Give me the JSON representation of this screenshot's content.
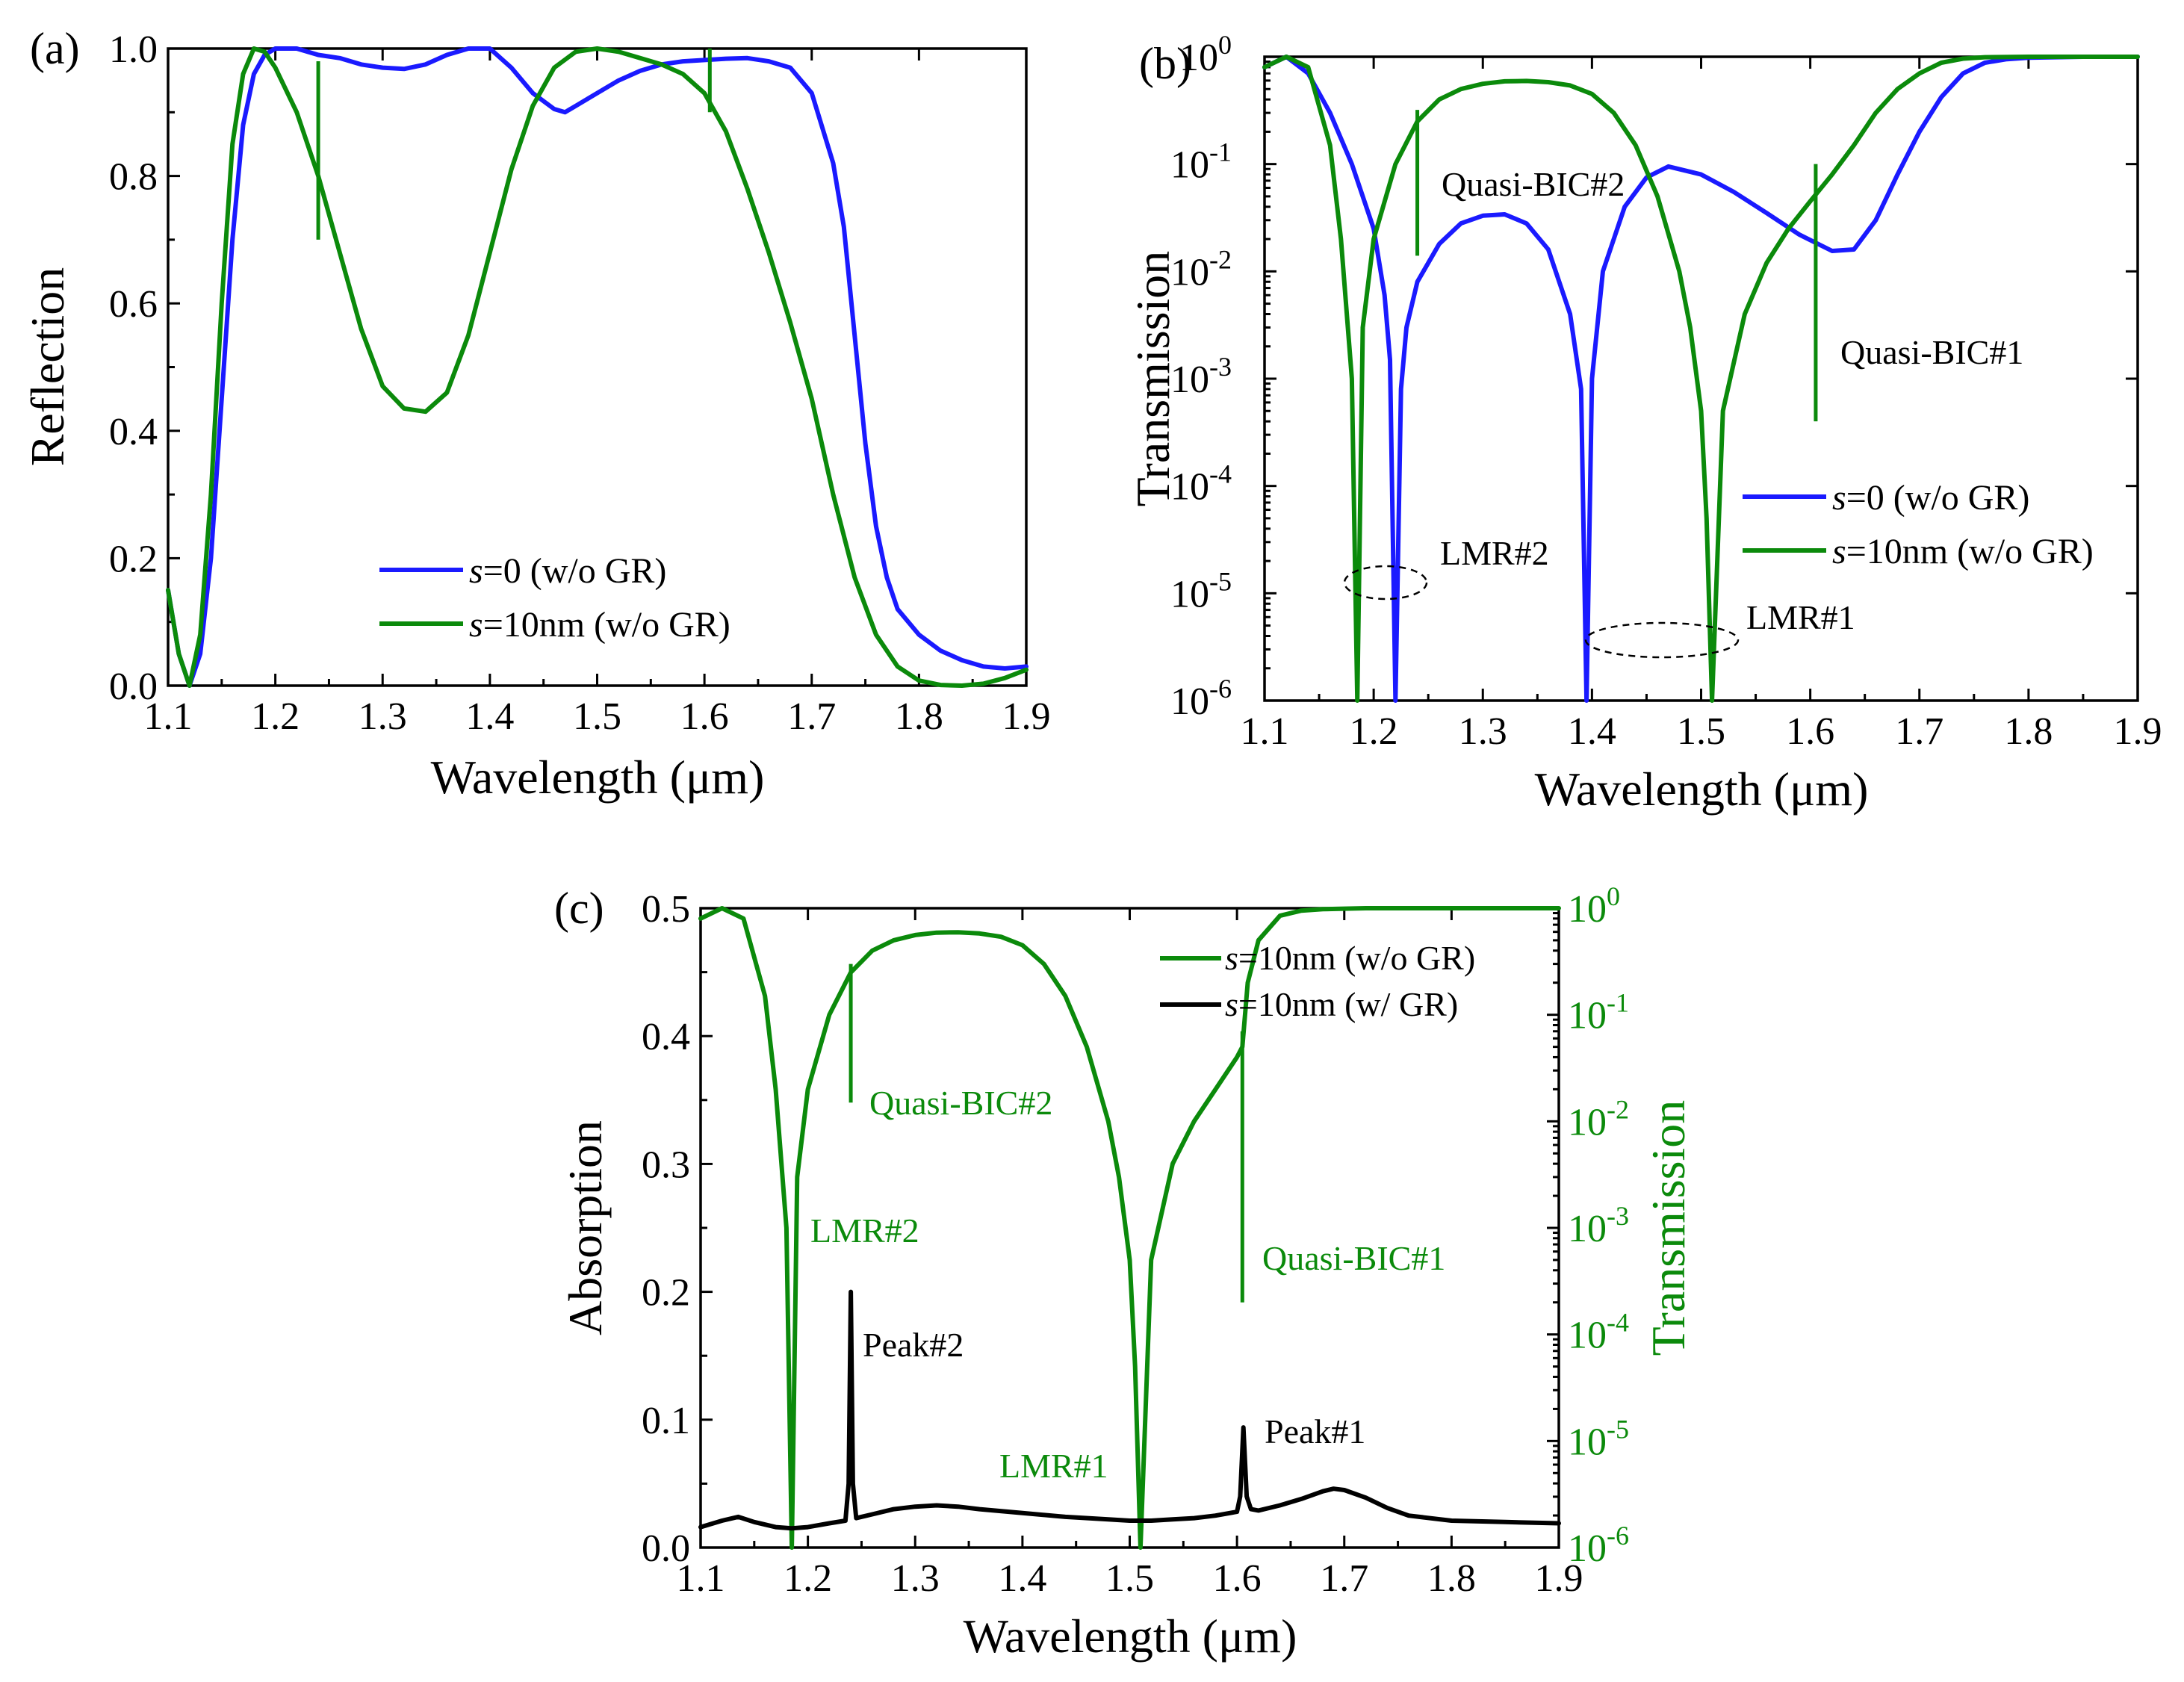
{
  "colors": {
    "blue": "#1a1aff",
    "green": "#0b8a0b",
    "black": "#000000"
  },
  "panels": {
    "a": {
      "label": "(a)",
      "xlabel": "Wavelength (μm)",
      "ylabel": "Reflection",
      "xticks": [
        "1.1",
        "1.2",
        "1.3",
        "1.4",
        "1.5",
        "1.6",
        "1.7",
        "1.8",
        "1.9"
      ],
      "yticks": [
        "0.0",
        "0.2",
        "0.4",
        "0.6",
        "0.8",
        "1.0"
      ],
      "legend": [
        {
          "s": "s",
          "rest": "=0 (w/o GR)"
        },
        {
          "s": "s",
          "rest": "=10nm (w/o GR)"
        }
      ]
    },
    "b": {
      "label": "(b)",
      "xlabel": "Wavelength (μm)",
      "ylabel": "Transmission",
      "xticks": [
        "1.1",
        "1.2",
        "1.3",
        "1.4",
        "1.5",
        "1.6",
        "1.7",
        "1.8",
        "1.9"
      ],
      "yticks": [
        {
          "base": "10",
          "exp": "0"
        },
        {
          "base": "10",
          "exp": "-1"
        },
        {
          "base": "10",
          "exp": "-2"
        },
        {
          "base": "10",
          "exp": "-3"
        },
        {
          "base": "10",
          "exp": "-4"
        },
        {
          "base": "10",
          "exp": "-5"
        },
        {
          "base": "10",
          "exp": "-6"
        }
      ],
      "legend": [
        {
          "s": "s",
          "rest": "=0 (w/o GR)"
        },
        {
          "s": "s",
          "rest": "=10nm (w/o GR)"
        }
      ],
      "annotations": {
        "qbic2": "Quasi-BIC#2",
        "qbic1": "Quasi-BIC#1",
        "lmr2": "LMR#2",
        "lmr1": "LMR#1"
      }
    },
    "c": {
      "label": "(c)",
      "xlabel": "Wavelength (μm)",
      "ylabel": "Absorption",
      "y2label": "Transmission",
      "xticks": [
        "1.1",
        "1.2",
        "1.3",
        "1.4",
        "1.5",
        "1.6",
        "1.7",
        "1.8",
        "1.9"
      ],
      "yticks": [
        "0.0",
        "0.1",
        "0.2",
        "0.3",
        "0.4",
        "0.5"
      ],
      "y2ticks": [
        {
          "base": "10",
          "exp": "0"
        },
        {
          "base": "10",
          "exp": "-1"
        },
        {
          "base": "10",
          "exp": "-2"
        },
        {
          "base": "10",
          "exp": "-3"
        },
        {
          "base": "10",
          "exp": "-4"
        },
        {
          "base": "10",
          "exp": "-5"
        },
        {
          "base": "10",
          "exp": "-6"
        }
      ],
      "legend": [
        {
          "s": "s",
          "rest": "=10nm (w/o GR)"
        },
        {
          "s": "s",
          "rest": "=10nm (w/ GR)"
        }
      ],
      "annotations": {
        "qbic2": "Quasi-BIC#2",
        "qbic1": "Quasi-BIC#1",
        "lmr2": "LMR#2",
        "lmr1": "LMR#1",
        "peak2": "Peak#2",
        "peak1": "Peak#1"
      }
    }
  },
  "chart_data": [
    {
      "type": "line",
      "panel": "a",
      "title": "",
      "xlabel": "Wavelength (μm)",
      "ylabel": "Reflection",
      "xlim": [
        1.1,
        1.9
      ],
      "ylim": [
        0.0,
        1.0
      ],
      "series": [
        {
          "name": "s=0 (w/o GR)",
          "color": "blue",
          "x": [
            1.1,
            1.11,
            1.12,
            1.13,
            1.14,
            1.15,
            1.16,
            1.17,
            1.18,
            1.19,
            1.2,
            1.22,
            1.24,
            1.26,
            1.28,
            1.3,
            1.32,
            1.34,
            1.36,
            1.38,
            1.4,
            1.42,
            1.44,
            1.46,
            1.47,
            1.48,
            1.5,
            1.52,
            1.54,
            1.56,
            1.58,
            1.6,
            1.62,
            1.64,
            1.66,
            1.68,
            1.7,
            1.72,
            1.73,
            1.74,
            1.75,
            1.76,
            1.77,
            1.78,
            1.8,
            1.82,
            1.84,
            1.86,
            1.88,
            1.9
          ],
          "y": [
            0.15,
            0.05,
            0.0,
            0.05,
            0.2,
            0.45,
            0.7,
            0.88,
            0.96,
            0.99,
            1.0,
            1.0,
            0.99,
            0.985,
            0.975,
            0.97,
            0.968,
            0.975,
            0.99,
            1.0,
            1.0,
            0.97,
            0.93,
            0.905,
            0.9,
            0.91,
            0.93,
            0.95,
            0.965,
            0.975,
            0.98,
            0.982,
            0.984,
            0.985,
            0.98,
            0.97,
            0.93,
            0.82,
            0.72,
            0.55,
            0.38,
            0.25,
            0.17,
            0.12,
            0.08,
            0.055,
            0.04,
            0.03,
            0.027,
            0.03
          ]
        },
        {
          "name": "s=10nm (w/o GR)",
          "color": "green",
          "x": [
            1.1,
            1.11,
            1.12,
            1.13,
            1.14,
            1.15,
            1.16,
            1.17,
            1.18,
            1.19,
            1.2,
            1.22,
            1.24,
            1.26,
            1.28,
            1.3,
            1.32,
            1.34,
            1.36,
            1.38,
            1.4,
            1.42,
            1.44,
            1.46,
            1.48,
            1.5,
            1.52,
            1.54,
            1.56,
            1.58,
            1.6,
            1.62,
            1.64,
            1.66,
            1.68,
            1.7,
            1.72,
            1.74,
            1.76,
            1.78,
            1.8,
            1.82,
            1.84,
            1.86,
            1.88,
            1.9
          ],
          "y": [
            0.15,
            0.05,
            0.0,
            0.08,
            0.3,
            0.6,
            0.85,
            0.96,
            1.0,
            0.995,
            0.97,
            0.9,
            0.8,
            0.68,
            0.56,
            0.47,
            0.435,
            0.43,
            0.46,
            0.55,
            0.68,
            0.81,
            0.91,
            0.97,
            0.995,
            1.0,
            0.995,
            0.985,
            0.975,
            0.96,
            0.93,
            0.87,
            0.78,
            0.68,
            0.57,
            0.45,
            0.3,
            0.17,
            0.08,
            0.03,
            0.008,
            0.001,
            0.0,
            0.003,
            0.012,
            0.025
          ]
        }
      ],
      "markers": [
        {
          "x": 1.24,
          "y_from": 0.7,
          "y_to": 0.98
        },
        {
          "x": 1.605,
          "y_from": 0.9,
          "y_to": 1.0
        }
      ]
    },
    {
      "type": "line",
      "panel": "b",
      "title": "",
      "xlabel": "Wavelength (μm)",
      "ylabel": "Transmission",
      "yscale": "log",
      "xlim": [
        1.1,
        1.9
      ],
      "ylim": [
        1e-06,
        1
      ],
      "series": [
        {
          "name": "s=0 (w/o GR)",
          "color": "blue",
          "x": [
            1.1,
            1.12,
            1.14,
            1.16,
            1.18,
            1.2,
            1.21,
            1.215,
            1.22,
            1.225,
            1.23,
            1.24,
            1.26,
            1.28,
            1.3,
            1.32,
            1.34,
            1.36,
            1.38,
            1.39,
            1.395,
            1.4,
            1.41,
            1.43,
            1.45,
            1.47,
            1.5,
            1.53,
            1.56,
            1.59,
            1.62,
            1.64,
            1.66,
            1.68,
            1.7,
            1.72,
            1.74,
            1.76,
            1.78,
            1.8,
            1.85,
            1.9
          ],
          "y": [
            0.8,
            1.0,
            0.7,
            0.3,
            0.1,
            0.025,
            0.006,
            0.0015,
            1e-06,
            0.0008,
            0.003,
            0.008,
            0.018,
            0.028,
            0.033,
            0.034,
            0.028,
            0.016,
            0.004,
            0.0008,
            1e-06,
            0.001,
            0.01,
            0.04,
            0.075,
            0.095,
            0.08,
            0.055,
            0.035,
            0.022,
            0.0155,
            0.016,
            0.03,
            0.08,
            0.2,
            0.42,
            0.7,
            0.88,
            0.95,
            0.98,
            1.0,
            1.0
          ]
        },
        {
          "name": "s=10nm (w/o GR)",
          "color": "green",
          "x": [
            1.1,
            1.12,
            1.14,
            1.16,
            1.17,
            1.18,
            1.185,
            1.19,
            1.2,
            1.22,
            1.24,
            1.26,
            1.28,
            1.3,
            1.32,
            1.34,
            1.36,
            1.38,
            1.4,
            1.42,
            1.44,
            1.46,
            1.48,
            1.49,
            1.5,
            1.505,
            1.51,
            1.52,
            1.54,
            1.56,
            1.58,
            1.6,
            1.62,
            1.64,
            1.66,
            1.68,
            1.7,
            1.72,
            1.74,
            1.76,
            1.8,
            1.85,
            1.9
          ],
          "y": [
            0.8,
            1.0,
            0.8,
            0.15,
            0.02,
            0.001,
            1e-06,
            0.003,
            0.02,
            0.1,
            0.25,
            0.4,
            0.5,
            0.56,
            0.59,
            0.595,
            0.58,
            0.54,
            0.45,
            0.3,
            0.15,
            0.05,
            0.01,
            0.003,
            0.0005,
            5e-05,
            1e-06,
            0.0005,
            0.004,
            0.012,
            0.025,
            0.045,
            0.08,
            0.15,
            0.3,
            0.5,
            0.7,
            0.88,
            0.96,
            0.99,
            1.0,
            1.0,
            1.0
          ]
        }
      ],
      "markers": [
        {
          "x": 1.24,
          "y_from": 0.014,
          "y_to": 0.32
        },
        {
          "x": 1.605,
          "y_from": 0.0004,
          "y_to": 0.1
        }
      ]
    },
    {
      "type": "line",
      "panel": "c",
      "title": "",
      "xlabel": "Wavelength (μm)",
      "ylabel": "Absorption",
      "y2label": "Transmission",
      "xlim": [
        1.1,
        1.9
      ],
      "ylim": [
        0.0,
        0.5
      ],
      "y2lim": [
        1e-06,
        1
      ],
      "y2scale": "log",
      "series": [
        {
          "name": "s=10nm (w/o GR)",
          "color": "green",
          "axis": "right",
          "x": [
            1.1,
            1.12,
            1.14,
            1.16,
            1.17,
            1.18,
            1.185,
            1.19,
            1.2,
            1.22,
            1.24,
            1.26,
            1.28,
            1.3,
            1.32,
            1.34,
            1.36,
            1.38,
            1.4,
            1.42,
            1.44,
            1.46,
            1.48,
            1.49,
            1.5,
            1.505,
            1.51,
            1.52,
            1.54,
            1.56,
            1.58,
            1.6,
            1.605,
            1.61,
            1.62,
            1.64,
            1.66,
            1.68,
            1.7,
            1.72,
            1.74,
            1.76,
            1.8,
            1.85,
            1.9
          ],
          "y": [
            0.8,
            1.0,
            0.8,
            0.15,
            0.02,
            0.001,
            1e-06,
            0.003,
            0.02,
            0.1,
            0.25,
            0.4,
            0.5,
            0.56,
            0.59,
            0.595,
            0.58,
            0.54,
            0.45,
            0.3,
            0.15,
            0.05,
            0.01,
            0.003,
            0.0005,
            5e-05,
            1e-06,
            0.0005,
            0.004,
            0.01,
            0.02,
            0.04,
            0.05,
            0.2,
            0.5,
            0.85,
            0.95,
            0.98,
            0.99,
            1.0,
            1.0,
            1.0,
            1.0,
            1.0,
            1.0
          ]
        },
        {
          "name": "s=10nm (w/ GR)",
          "color": "black",
          "axis": "left",
          "x": [
            1.1,
            1.12,
            1.135,
            1.15,
            1.17,
            1.185,
            1.2,
            1.22,
            1.235,
            1.238,
            1.24,
            1.242,
            1.245,
            1.26,
            1.28,
            1.3,
            1.32,
            1.34,
            1.36,
            1.4,
            1.44,
            1.48,
            1.5,
            1.52,
            1.54,
            1.56,
            1.58,
            1.6,
            1.603,
            1.606,
            1.609,
            1.613,
            1.62,
            1.64,
            1.66,
            1.68,
            1.69,
            1.7,
            1.72,
            1.74,
            1.76,
            1.8,
            1.85,
            1.9
          ],
          "y": [
            0.016,
            0.021,
            0.024,
            0.02,
            0.016,
            0.015,
            0.016,
            0.019,
            0.021,
            0.05,
            0.2,
            0.05,
            0.023,
            0.026,
            0.03,
            0.032,
            0.033,
            0.032,
            0.03,
            0.027,
            0.024,
            0.022,
            0.021,
            0.021,
            0.022,
            0.023,
            0.025,
            0.028,
            0.04,
            0.094,
            0.04,
            0.03,
            0.029,
            0.033,
            0.038,
            0.044,
            0.046,
            0.045,
            0.039,
            0.031,
            0.025,
            0.021,
            0.02,
            0.019
          ]
        }
      ],
      "markers": [
        {
          "x": 1.24,
          "y_from": 0.015,
          "y_to": 0.3
        },
        {
          "x": 1.605,
          "y_from": 0.0002,
          "y_to": 0.07
        }
      ]
    }
  ]
}
